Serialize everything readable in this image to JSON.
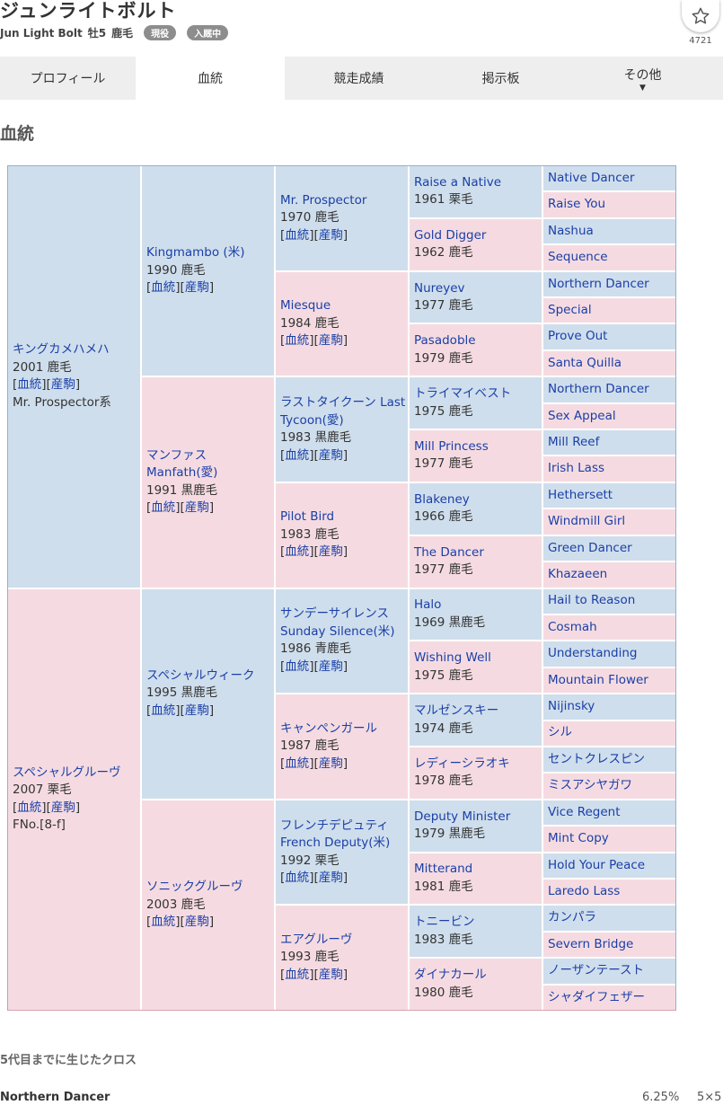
{
  "header": {
    "title": "ジュンライトボルト",
    "english_name": "Jun Light Bolt",
    "sex_age": "牡5",
    "color": "鹿毛",
    "badges": [
      "現役",
      "入厩中"
    ],
    "favorite_count": "4721",
    "favorite_icon": "star-icon"
  },
  "tabs": [
    {
      "label": "プロフィール"
    },
    {
      "label": "血統"
    },
    {
      "label": "競走成績"
    },
    {
      "label": "掲示板"
    },
    {
      "label": "その他",
      "caret": "▼"
    }
  ],
  "section_title": "血統",
  "link_labels": {
    "blood": "血統",
    "produce": "産駒"
  },
  "pedigree": {
    "g1": [
      {
        "name": "キングカメハメハ",
        "info": "2001 鹿毛",
        "extra": "Mr. Prospector系",
        "sex": "m"
      },
      {
        "name": "スペシャルグルーヴ",
        "info": "2007 栗毛",
        "extra": "FNo.[8-f]",
        "sex": "f"
      }
    ],
    "g2": [
      {
        "name": "Kingmambo (米)",
        "info": "1990 鹿毛",
        "sex": "m"
      },
      {
        "name": "マンファス Manfath(愛)",
        "info": "1991 黒鹿毛",
        "sex": "f"
      },
      {
        "name": "スペシャルウィーク",
        "info": "1995 黒鹿毛",
        "sex": "m"
      },
      {
        "name": "ソニックグルーヴ",
        "info": "2003 鹿毛",
        "sex": "f"
      }
    ],
    "g3": [
      {
        "name": "Mr. Prospector",
        "info": "1970 鹿毛",
        "sex": "m"
      },
      {
        "name": "Miesque",
        "info": "1984 鹿毛",
        "sex": "f"
      },
      {
        "name": "ラストタイクーン Last Tycoon(愛)",
        "info": "1983 黒鹿毛",
        "sex": "m"
      },
      {
        "name": "Pilot Bird",
        "info": "1983 鹿毛",
        "sex": "f"
      },
      {
        "name": "サンデーサイレンス Sunday Silence(米)",
        "info": "1986 青鹿毛",
        "sex": "m"
      },
      {
        "name": "キャンペンガール",
        "info": "1987 鹿毛",
        "sex": "f"
      },
      {
        "name": "フレンチデピュティ French Deputy(米)",
        "info": "1992 栗毛",
        "sex": "m"
      },
      {
        "name": "エアグルーヴ",
        "info": "1993 鹿毛",
        "sex": "f"
      }
    ],
    "g4": [
      {
        "name": "Raise a Native",
        "info": "1961 栗毛",
        "sex": "m"
      },
      {
        "name": "Gold Digger",
        "info": "1962 鹿毛",
        "sex": "f"
      },
      {
        "name": "Nureyev",
        "info": "1977 鹿毛",
        "sex": "m"
      },
      {
        "name": "Pasadoble",
        "info": "1979 鹿毛",
        "sex": "f"
      },
      {
        "name": "トライマイベスト",
        "info": "1975 鹿毛",
        "sex": "m"
      },
      {
        "name": "Mill Princess",
        "info": "1977 鹿毛",
        "sex": "f"
      },
      {
        "name": "Blakeney",
        "info": "1966 鹿毛",
        "sex": "m"
      },
      {
        "name": "The Dancer",
        "info": "1977 鹿毛",
        "sex": "f"
      },
      {
        "name": "Halo",
        "info": "1969 黒鹿毛",
        "sex": "m"
      },
      {
        "name": "Wishing Well",
        "info": "1975 鹿毛",
        "sex": "f"
      },
      {
        "name": "マルゼンスキー",
        "info": "1974 鹿毛",
        "sex": "m"
      },
      {
        "name": "レディーシラオキ",
        "info": "1978 鹿毛",
        "sex": "f"
      },
      {
        "name": "Deputy Minister",
        "info": "1979 黒鹿毛",
        "sex": "m"
      },
      {
        "name": "Mitterand",
        "info": "1981 鹿毛",
        "sex": "f"
      },
      {
        "name": "トニービン",
        "info": "1983 鹿毛",
        "sex": "m"
      },
      {
        "name": "ダイナカール",
        "info": "1980 鹿毛",
        "sex": "f"
      }
    ],
    "g5": [
      "Native Dancer",
      "Raise You",
      "Nashua",
      "Sequence",
      "Northern Dancer",
      "Special",
      "Prove Out",
      "Santa Quilla",
      "Northern Dancer",
      "Sex Appeal",
      "Mill Reef",
      "Irish Lass",
      "Hethersett",
      "Windmill Girl",
      "Green Dancer",
      "Khazaeen",
      "Hail to Reason",
      "Cosmah",
      "Understanding",
      "Mountain Flower",
      "Nijinsky",
      "シル",
      "セントクレスピン",
      "ミスアシヤガワ",
      "Vice Regent",
      "Mint Copy",
      "Hold Your Peace",
      "Laredo Lass",
      "カンパラ",
      "Severn Bridge",
      "ノーザンテースト",
      "シャダイフェザー"
    ]
  },
  "crosses": {
    "title": "5代目までに生じたクロス",
    "rows": [
      {
        "name": "Northern Dancer",
        "percent": "6.25%",
        "generation": "5×5"
      }
    ]
  }
}
